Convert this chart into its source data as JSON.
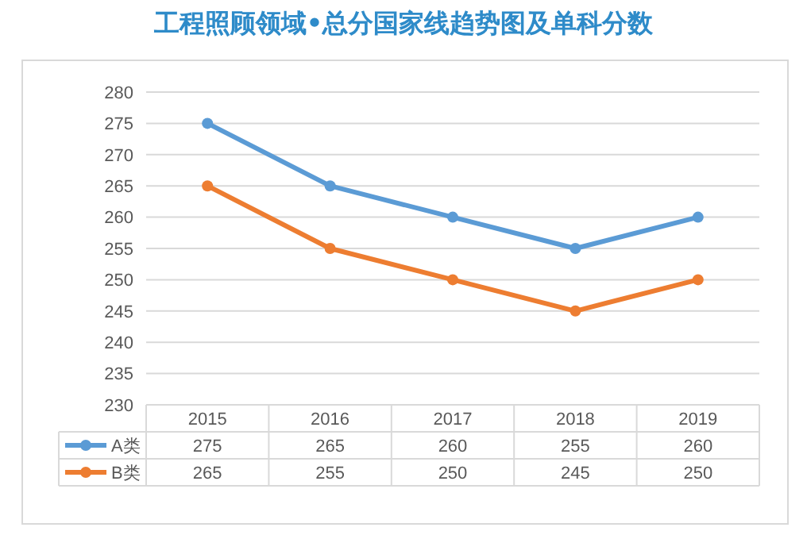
{
  "chart_data": {
    "type": "line",
    "title": "工程照顾领域•总分国家线趋势图及单科分数",
    "categories": [
      "2015",
      "2016",
      "2017",
      "2018",
      "2019"
    ],
    "series": [
      {
        "name": "A类",
        "color": "#5b9bd5",
        "values": [
          275,
          265,
          260,
          255,
          260
        ]
      },
      {
        "name": "B类",
        "color": "#ed7d31",
        "values": [
          265,
          255,
          250,
          245,
          250
        ]
      }
    ],
    "ylim": [
      230,
      280
    ],
    "yticks": [
      230,
      235,
      240,
      245,
      250,
      255,
      260,
      265,
      270,
      275,
      280
    ],
    "grid": "y",
    "marker": "circle",
    "line_style": "solid",
    "legend": "bottom",
    "data_labels": true
  }
}
